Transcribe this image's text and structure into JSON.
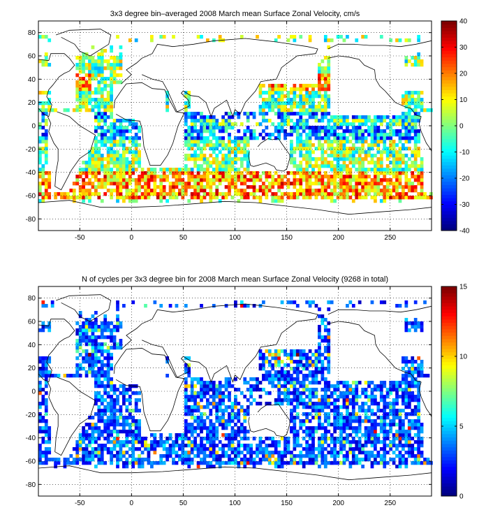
{
  "chart_data": [
    {
      "type": "heatmap",
      "title": "3x3 degree bin–averaged 2008 March mean Surface Zonal Velocity, cm/s",
      "xlabel": "",
      "ylabel": "",
      "xlim": [
        -90,
        290
      ],
      "ylim": [
        -90,
        90
      ],
      "x_ticks": [
        "-50",
        "0",
        "50",
        "100",
        "150",
        "200",
        "250"
      ],
      "y_ticks": [
        "80",
        "60",
        "40",
        "20",
        "0",
        "-20",
        "-40",
        "-60",
        "-80"
      ],
      "bin_size_deg": 3,
      "grid": "dotted",
      "colorbar": {
        "min": -40,
        "max": 40,
        "ticks": [
          "40",
          "30",
          "20",
          "10",
          "0",
          "-10",
          "-20",
          "-30",
          "-40"
        ],
        "colormap": "jet"
      }
    },
    {
      "type": "heatmap",
      "title": "N of cycles per 3x3 degree bin for 2008 March mean Surface Zonal Velocity (9268 in total)",
      "xlabel": "",
      "ylabel": "",
      "xlim": [
        -90,
        290
      ],
      "ylim": [
        -90,
        90
      ],
      "x_ticks": [
        "-50",
        "0",
        "50",
        "100",
        "150",
        "200",
        "250"
      ],
      "y_ticks": [
        "80",
        "60",
        "40",
        "20",
        "0",
        "-20",
        "-40",
        "-60",
        "-80"
      ],
      "bin_size_deg": 3,
      "grid": "dotted",
      "colorbar": {
        "min": 0,
        "max": 15,
        "ticks": [
          "15",
          "10",
          "5",
          "0"
        ],
        "colormap": "jet"
      }
    }
  ]
}
